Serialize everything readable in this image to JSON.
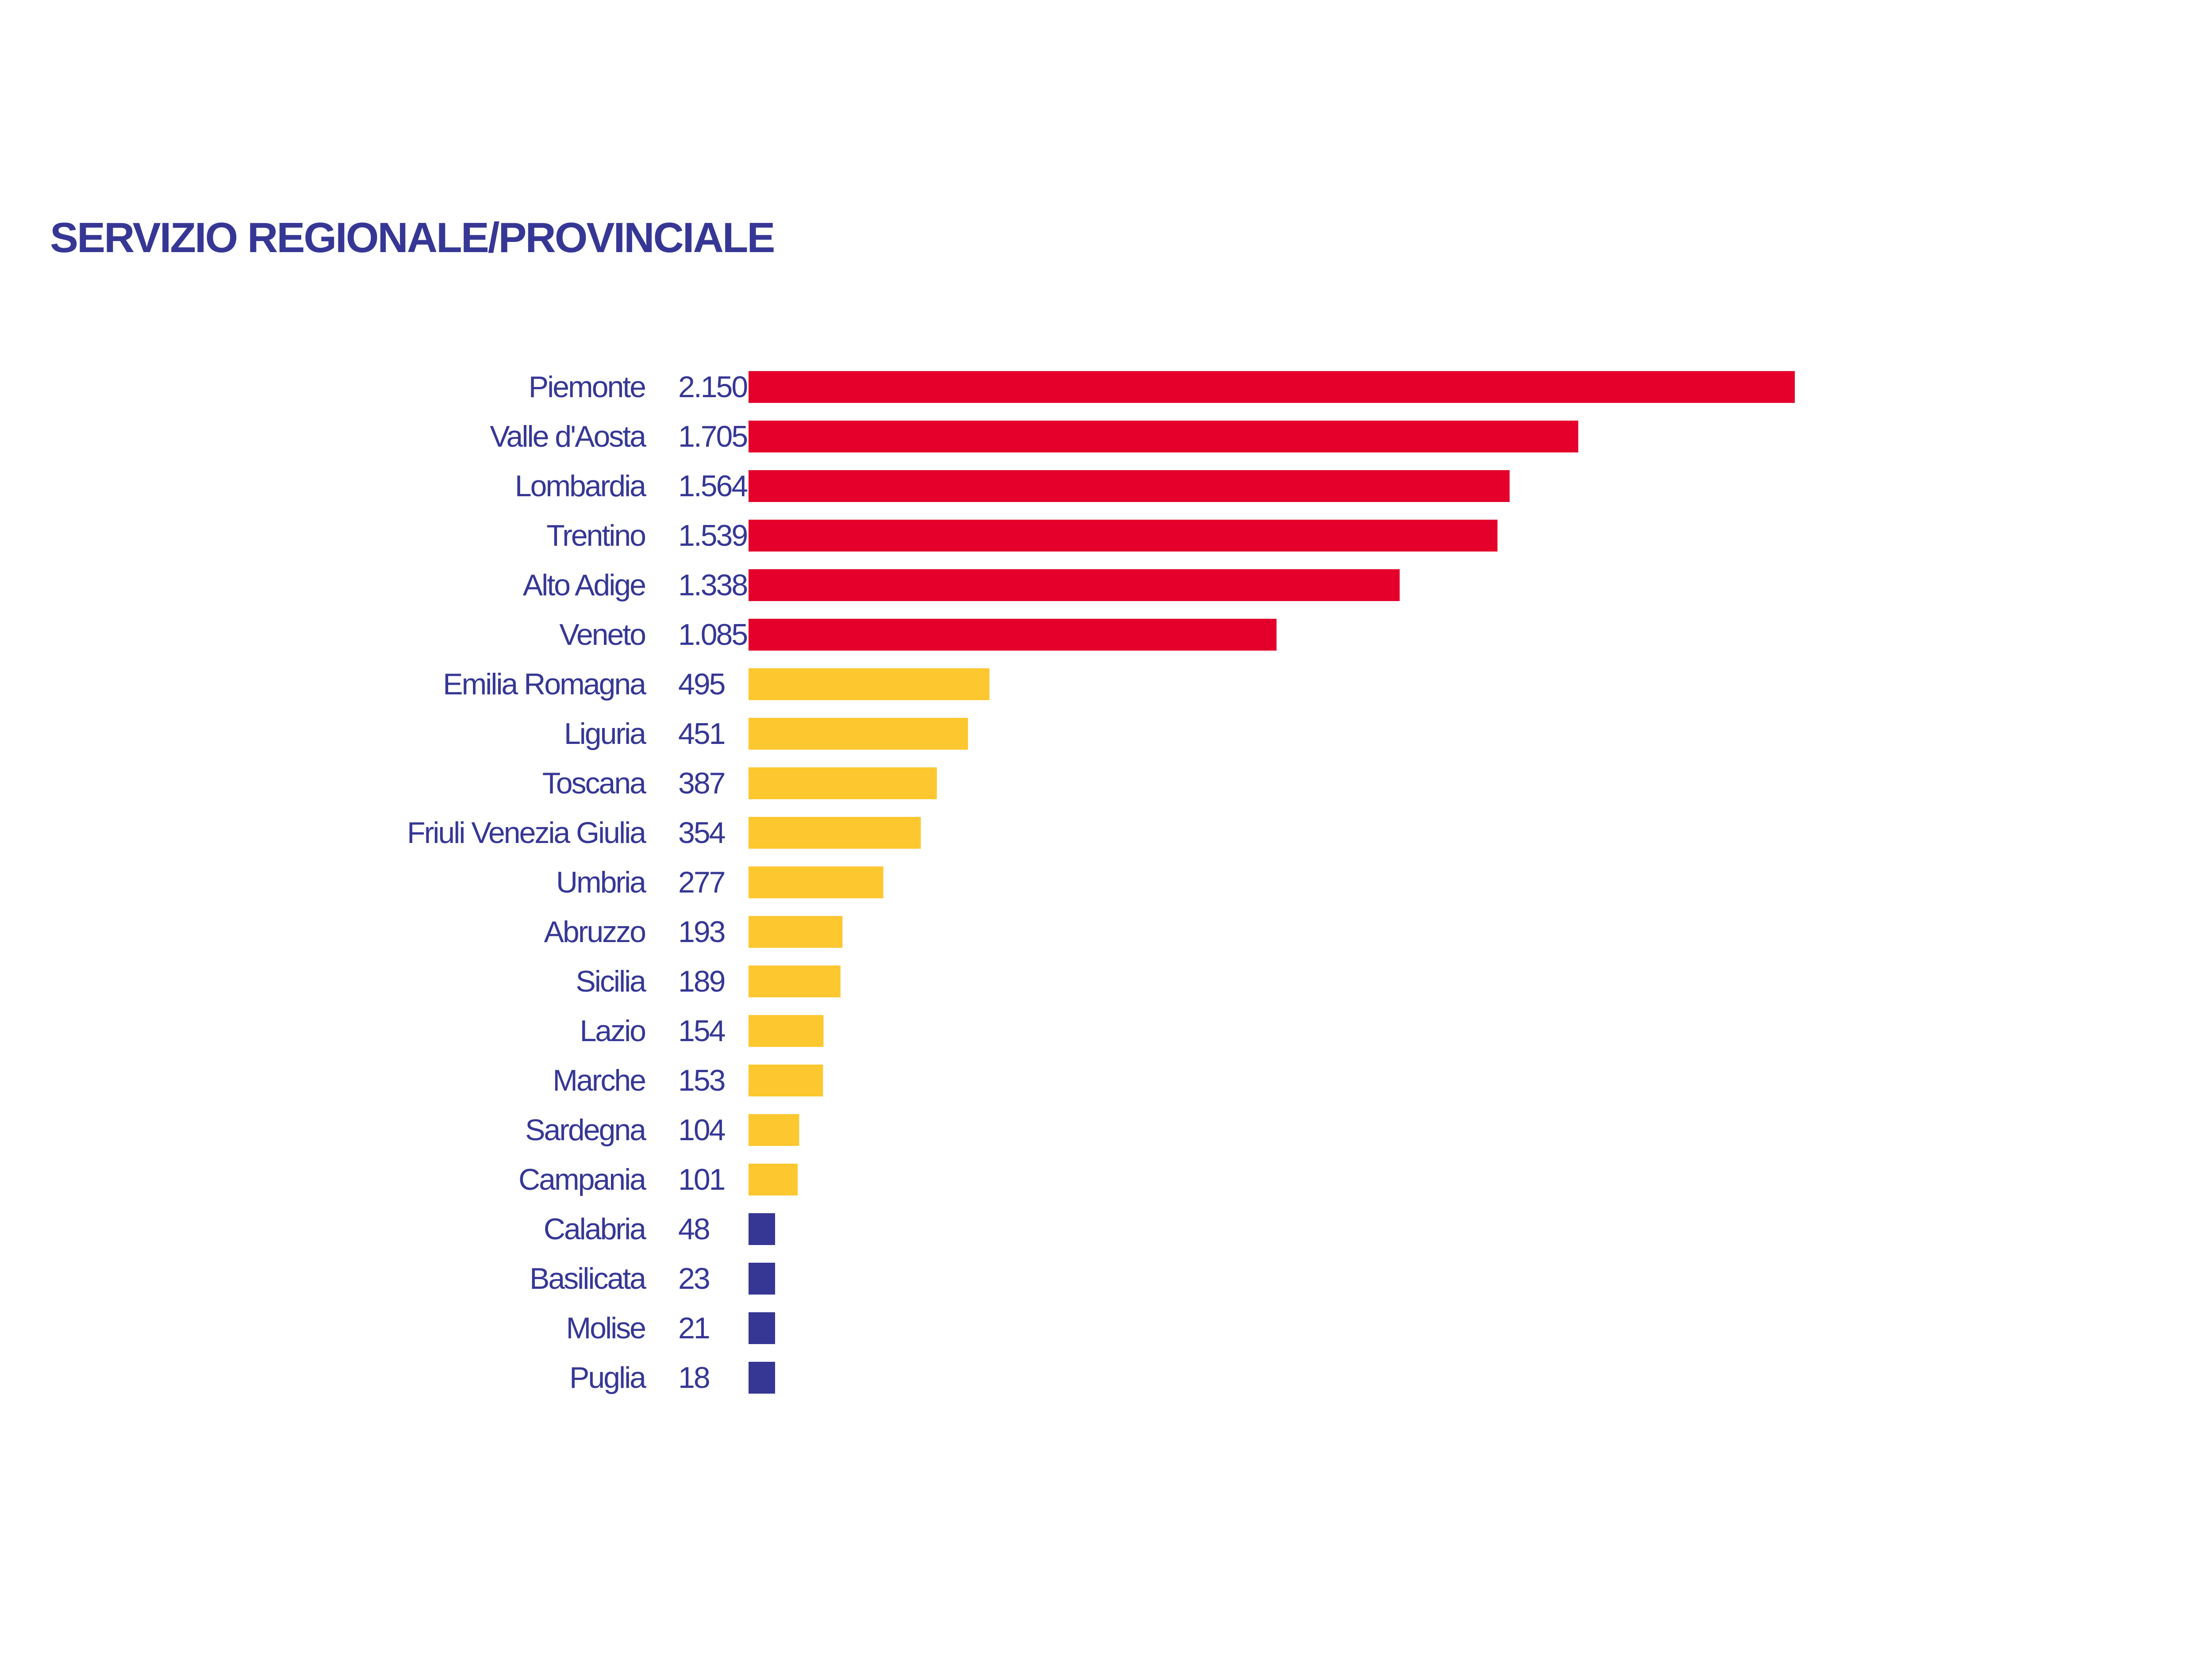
{
  "chart_data": {
    "type": "bar",
    "orientation": "horizontal",
    "title": "SERVIZIO REGIONALE/PROVINCIALE",
    "xlabel": "",
    "ylabel": "",
    "grid": false,
    "legend": "none",
    "xlim": [
      0,
      2150
    ],
    "categories": [
      "Piemonte",
      "Valle d'Aosta",
      "Lombardia",
      "Trentino",
      "Alto Adige",
      "Veneto",
      "Emilia Romagna",
      "Liguria",
      "Toscana",
      "Friuli Venezia Giulia",
      "Umbria",
      "Abruzzo",
      "Sicilia",
      "Lazio",
      "Marche",
      "Sardegna",
      "Campania",
      "Calabria",
      "Basilicata",
      "Molise",
      "Puglia"
    ],
    "values": [
      2150,
      1705,
      1564,
      1539,
      1338,
      1085,
      495,
      451,
      387,
      354,
      277,
      193,
      189,
      154,
      153,
      104,
      101,
      48,
      23,
      21,
      18
    ],
    "value_labels": [
      "2.150",
      "1.705",
      "1.564",
      "1.539",
      "1.338",
      "1.085",
      "495",
      "451",
      "387",
      "354",
      "277",
      "193",
      "189",
      "154",
      "153",
      "104",
      "101",
      "48",
      "23",
      "21",
      "18"
    ],
    "bar_colors": [
      "#e4002b",
      "#e4002b",
      "#e4002b",
      "#e4002b",
      "#e4002b",
      "#e4002b",
      "#fdc72f",
      "#fdc72f",
      "#fdc72f",
      "#fdc72f",
      "#fdc72f",
      "#fdc72f",
      "#fdc72f",
      "#fdc72f",
      "#fdc72f",
      "#fdc72f",
      "#fdc72f",
      "#363795",
      "#363795",
      "#363795",
      "#363795"
    ],
    "text_color": "#363795"
  }
}
